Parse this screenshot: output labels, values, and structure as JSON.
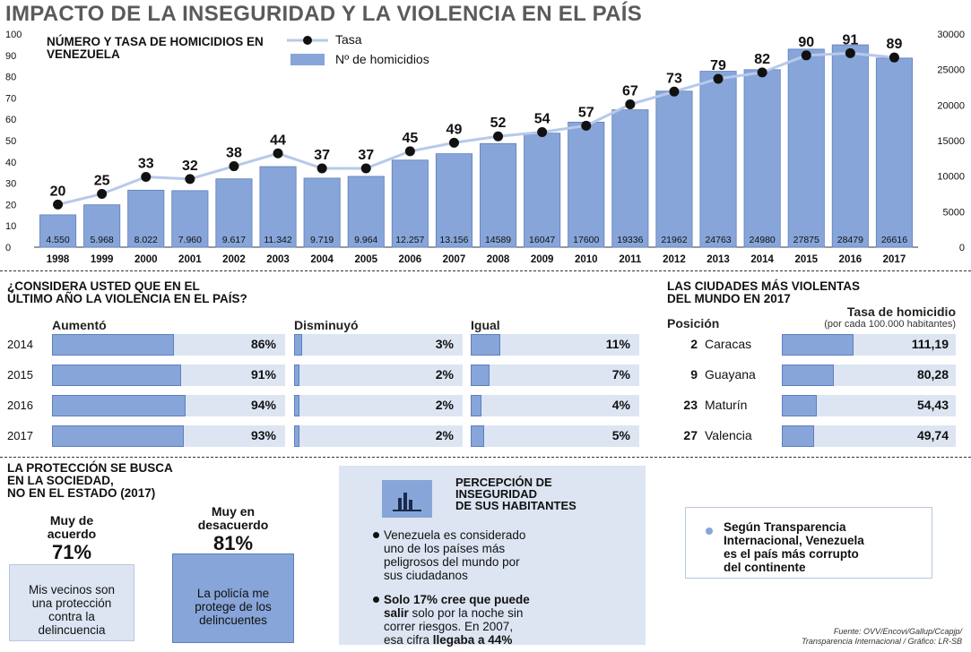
{
  "title": "IMPACTO DE LA INSEGURIDAD Y LA VIOLENCIA EN EL PAÍS",
  "chart_data": {
    "type": "bar+line",
    "title": "NÚMERO Y TASA DE HOMICIDIOS EN VENEZUELA",
    "legend": {
      "line": "Tasa",
      "bars": "Nº de homicidios",
      "placement": "top-center"
    },
    "categories": [
      "1998",
      "1999",
      "2000",
      "2001",
      "2002",
      "2003",
      "2004",
      "2005",
      "2006",
      "2007",
      "2008",
      "2009",
      "2010",
      "2011",
      "2012",
      "2013",
      "2014",
      "2015",
      "2016",
      "2017"
    ],
    "series": [
      {
        "name": "Tasa",
        "type": "line",
        "axis": "left",
        "values": [
          20,
          25,
          33,
          32,
          38,
          44,
          37,
          37,
          45,
          49,
          52,
          54,
          57,
          67,
          73,
          79,
          82,
          90,
          91,
          89
        ]
      },
      {
        "name": "Nº de homicidios",
        "type": "bar",
        "axis": "right",
        "values": [
          4550,
          5968,
          8022,
          7960,
          9617,
          11342,
          9719,
          9964,
          12257,
          13156,
          14589,
          16047,
          17600,
          19336,
          21962,
          24763,
          24980,
          27875,
          28479,
          26616
        ],
        "labels": [
          "4.550",
          "5.968",
          "8.022",
          "7.960",
          "9.617",
          "11.342",
          "9.719",
          "9.964",
          "12.257",
          "13.156",
          "14589",
          "16047",
          "17600",
          "19336",
          "21962",
          "24763",
          "24980",
          "27875",
          "28479",
          "26616"
        ]
      }
    ],
    "y_left": {
      "min": 0,
      "max": 100,
      "ticks": [
        "0",
        "10",
        "20",
        "30",
        "40",
        "50",
        "60",
        "70",
        "80",
        "90",
        "100"
      ]
    },
    "y_right": {
      "min": 0,
      "max": 30000,
      "ticks": [
        "0",
        "5000",
        "10000",
        "15000",
        "20000",
        "25000",
        "30000"
      ]
    },
    "colors": {
      "bar": "#87a5d8",
      "bar_border": "#5d7fbd",
      "line": "#b7c9ea",
      "dot": "#111111"
    }
  },
  "survey": {
    "title_line1": "¿CONSIDERA USTED QUE EN EL",
    "title_line2": "ÚLTIMO AÑO LA VIOLENCIA EN EL PAÍS?",
    "columns": [
      "Aumentó",
      "Disminuyó",
      "Igual"
    ],
    "rows": [
      {
        "year": "2014",
        "values": [
          "86%",
          "3%",
          "11%"
        ],
        "pct": [
          86,
          3,
          11
        ]
      },
      {
        "year": "2015",
        "values": [
          "91%",
          "2%",
          "7%"
        ],
        "pct": [
          91,
          2,
          7
        ]
      },
      {
        "year": "2016",
        "values": [
          "94%",
          "2%",
          "4%"
        ],
        "pct": [
          94,
          2,
          4
        ]
      },
      {
        "year": "2017",
        "values": [
          "93%",
          "2%",
          "5%"
        ],
        "pct": [
          93,
          2,
          5
        ]
      }
    ]
  },
  "cities": {
    "title_line1": "LAS CIUDADES MÁS VIOLENTAS",
    "title_line2": "DEL MUNDO EN 2017",
    "col_pos": "Posición",
    "col_rate": "Tasa de homicidio",
    "col_rate_sub": "(por cada 100.000 habitantes)",
    "rows": [
      {
        "pos": "2",
        "name": "Caracas",
        "rate": "111,19",
        "value": 111.19
      },
      {
        "pos": "9",
        "name": "Guayana",
        "rate": "80,28",
        "value": 80.28
      },
      {
        "pos": "23",
        "name": "Maturín",
        "rate": "54,43",
        "value": 54.43
      },
      {
        "pos": "27",
        "name": "Valencia",
        "rate": "49,74",
        "value": 49.74
      }
    ]
  },
  "protection": {
    "title_line1": "LA PROTECCIÓN SE BUSCA",
    "title_line2": "EN LA SOCIEDAD,",
    "title_line3": "NO EN EL ESTADO (2017)",
    "left_label_1": "Muy de",
    "left_label_2": "acuerdo",
    "left_pct": "71%",
    "left_box_1": "Mis vecinos son",
    "left_box_2": "una protección",
    "left_box_3": "contra la",
    "left_box_4": "delincuencia",
    "right_label_1": "Muy en",
    "right_label_2": "desacuerdo",
    "right_pct": "81%",
    "right_box_1": "La policía me",
    "right_box_2": "protege de los",
    "right_box_3": "delincuentes"
  },
  "perception": {
    "title_line1": "PERCEPCIÓN DE",
    "title_line2": "INSEGURIDAD",
    "title_line3": "DE SUS HABITANTES",
    "icon": "bar-chart-icon",
    "b1_l1": "Venezuela es considerado",
    "b1_l2": "uno de los países más",
    "b1_l3": "peligrosos del mundo por",
    "b1_l4": "sus ciudadanos",
    "b2_bold1": "Solo 17% cree que puede",
    "b2_bold2": "salir",
    "b2_rest2": " solo por la noche sin",
    "b2_l3": "correr riesgos. En 2007,",
    "b2_l4a": "esa cifra ",
    "b2_l4b": "llegaba a 44%"
  },
  "note": {
    "l1": "Según Transparencia",
    "l2": "Internacional, Venezuela",
    "l3": "es el país más corrupto",
    "l4": "del continente"
  },
  "source": {
    "l1": "Fuente: OVV/Encovi/Gallup/Ccapjp/",
    "l2": "Transparencia Internacional / Gráfico: LR-SB"
  }
}
